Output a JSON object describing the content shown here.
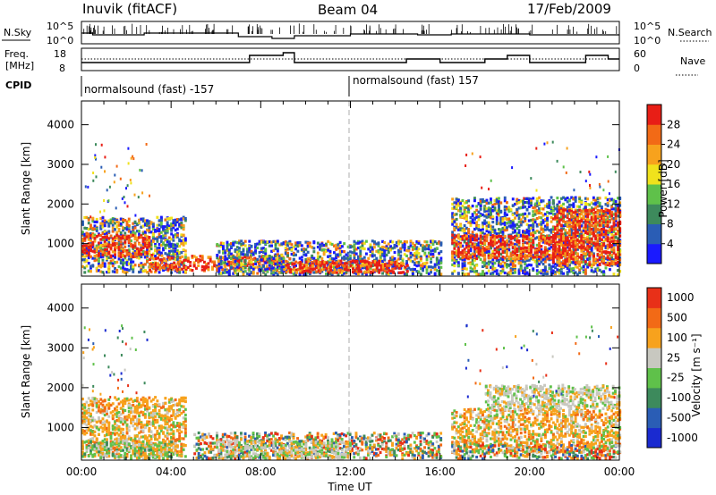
{
  "header": {
    "station": "Inuvik (fitACF)",
    "beam": "Beam 04",
    "date": "17/Feb/2009"
  },
  "top_panel": {
    "left_label": "N.Sky",
    "right_label": "N.Search",
    "left_ticks": [
      "10^5",
      "10^0"
    ],
    "right_ticks": [
      "10^5",
      "10^0"
    ]
  },
  "freq_panel": {
    "left_label_1": "Freq.",
    "left_label_2": "[MHz]",
    "right_label": "Nave",
    "left_ticks": [
      "18",
      "8"
    ],
    "right_ticks": [
      "60",
      "0"
    ]
  },
  "cpid": {
    "label": "CPID",
    "segments": [
      "normalsound (fast) -157",
      "normalsound (fast) 157"
    ]
  },
  "chart_data": [
    {
      "type": "heatmap",
      "name": "power",
      "xlabel": "Time UT",
      "ylabel": "Slant Range [km]",
      "xticks": [
        "00:00",
        "04:00",
        "08:00",
        "12:00",
        "16:00",
        "20:00",
        "00:00"
      ],
      "yticks": [
        "1000",
        "2000",
        "3000",
        "4000"
      ],
      "ylim": [
        180,
        4600
      ],
      "colorbar": {
        "label": "Power [dB]",
        "ticks": [
          "4",
          "8",
          "12",
          "16",
          "20",
          "24",
          "28"
        ],
        "colors": [
          "#1a1aff",
          "#2a5db5",
          "#3d8a5c",
          "#5fc14a",
          "#f0e21c",
          "#f7a21d",
          "#f26a16",
          "#e81e16"
        ]
      },
      "blobs": [
        {
          "t0": 0.0,
          "t1": 4.6,
          "r0": 300,
          "r1": 1700,
          "cls": "power-mixed"
        },
        {
          "t0": 0.0,
          "t1": 3.0,
          "r0": 700,
          "r1": 1250,
          "cls": "power-high"
        },
        {
          "t0": 3.0,
          "t1": 9.0,
          "r0": 350,
          "r1": 750,
          "cls": "power-high"
        },
        {
          "t0": 6.0,
          "t1": 16.0,
          "r0": 250,
          "r1": 1100,
          "cls": "power-mixed"
        },
        {
          "t0": 9.0,
          "t1": 14.5,
          "r0": 300,
          "r1": 600,
          "cls": "power-high"
        },
        {
          "t0": 16.5,
          "t1": 24.0,
          "r0": 250,
          "r1": 2200,
          "cls": "power-mixed"
        },
        {
          "t0": 16.5,
          "t1": 22.0,
          "r0": 650,
          "r1": 1250,
          "cls": "power-high"
        },
        {
          "t0": 21.0,
          "t1": 24.0,
          "r0": 500,
          "r1": 1900,
          "cls": "power-high"
        }
      ]
    },
    {
      "type": "heatmap",
      "name": "velocity",
      "xlabel": "Time UT",
      "ylabel": "Slant Range [km]",
      "xticks": [
        "00:00",
        "04:00",
        "08:00",
        "12:00",
        "16:00",
        "20:00",
        "00:00"
      ],
      "yticks": [
        "1000",
        "2000",
        "3000",
        "4000"
      ],
      "ylim": [
        180,
        4600
      ],
      "colorbar": {
        "label": "Velocity [m s⁻¹]",
        "ticks": [
          "1000",
          "500",
          "100",
          "25",
          "-25",
          "-100",
          "-500",
          "-1000"
        ],
        "colors": [
          "#1a2ad0",
          "#2a5db5",
          "#3d8a5c",
          "#5fc14a",
          "#c8c8c0",
          "#f7a21d",
          "#f26a16",
          "#e83018"
        ]
      },
      "blobs": [
        {
          "t0": 0.0,
          "t1": 4.6,
          "r0": 300,
          "r1": 1800,
          "cls": "vel-orange"
        },
        {
          "t0": 0.0,
          "t1": 4.0,
          "r0": 250,
          "r1": 700,
          "cls": "vel-green"
        },
        {
          "t0": 5.0,
          "t1": 16.0,
          "r0": 250,
          "r1": 900,
          "cls": "vel-mixed"
        },
        {
          "t0": 6.0,
          "t1": 12.0,
          "r0": 250,
          "r1": 700,
          "cls": "vel-grey"
        },
        {
          "t0": 16.5,
          "t1": 24.0,
          "r0": 400,
          "r1": 1500,
          "cls": "vel-orange"
        },
        {
          "t0": 18.0,
          "t1": 24.0,
          "r0": 1500,
          "r1": 2100,
          "cls": "vel-grey"
        },
        {
          "t0": 16.5,
          "t1": 24.0,
          "r0": 250,
          "r1": 600,
          "cls": "vel-mixed"
        }
      ]
    }
  ]
}
